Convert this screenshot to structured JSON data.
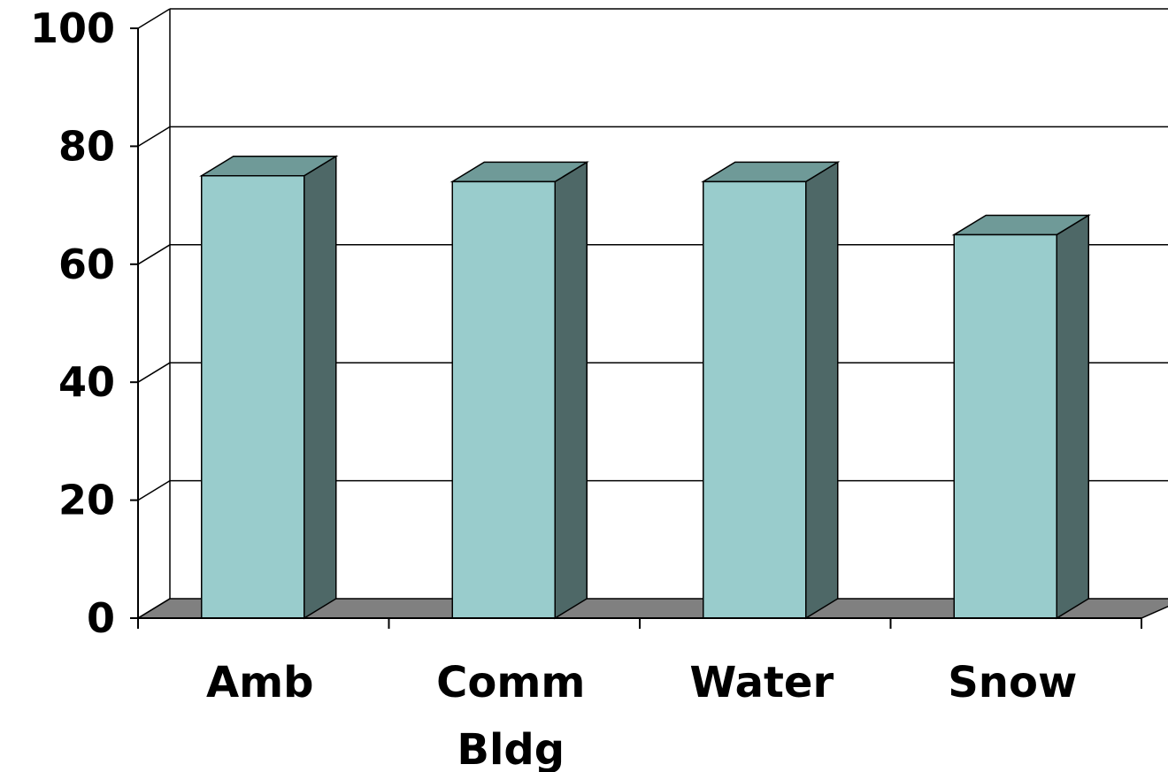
{
  "chart_data": {
    "type": "bar",
    "title": "",
    "xlabel": "",
    "ylabel": "",
    "ylim": [
      0,
      100
    ],
    "yticks": [
      "0",
      "20",
      "40",
      "60",
      "80",
      "100"
    ],
    "categories": [
      {
        "lines": [
          "Amb"
        ]
      },
      {
        "lines": [
          "Comm",
          "Bldg"
        ]
      },
      {
        "lines": [
          "Water"
        ]
      },
      {
        "lines": [
          "Snow"
        ]
      }
    ],
    "values": [
      75,
      74,
      74,
      65
    ],
    "grid": true,
    "three_d": true,
    "legend": "none",
    "colors": {
      "bar_front": "#99CCCC",
      "bar_top": "#6F9A98",
      "bar_side": "#4E6867",
      "floor": "#808080",
      "line": "#000000"
    }
  }
}
